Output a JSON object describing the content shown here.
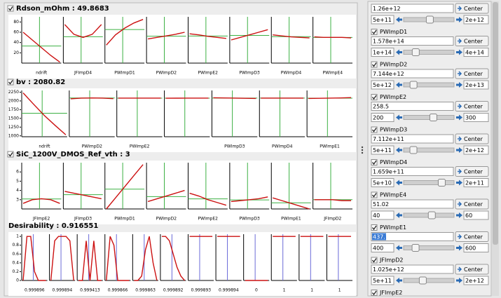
{
  "rows": [
    {
      "title": "Rdson_mOhm : 49.8683",
      "ylim": [
        0,
        90
      ],
      "yticks": [
        20,
        40,
        60,
        80
      ],
      "plots": [
        {
          "label": "ndrift",
          "values": [
            60,
            45,
            30,
            15,
            2
          ]
        },
        {
          "label": "JFImpD4",
          "values": [
            75,
            56,
            50,
            56,
            75
          ]
        },
        {
          "label": "PWImpD1",
          "values": [
            35,
            55,
            68,
            78,
            85
          ]
        },
        {
          "label": "PWImpD2",
          "values": [
            47,
            50,
            53,
            56,
            60
          ]
        },
        {
          "label": "PWImpE2",
          "values": [
            57,
            55,
            52,
            50,
            48
          ]
        },
        {
          "label": "PWImpD3",
          "values": [
            45,
            50,
            55,
            60,
            65
          ]
        },
        {
          "label": "PWImpD4",
          "values": [
            55,
            53,
            51,
            50,
            49
          ]
        },
        {
          "label": "PWImpE4",
          "values": [
            51,
            50,
            50,
            50,
            49
          ]
        }
      ]
    },
    {
      "title": "bv : 2080.82",
      "ylim": [
        975,
        2300
      ],
      "yticks": [
        1000,
        1250,
        1500,
        1750,
        2000,
        2250
      ],
      "plots": [
        {
          "label": "ndrift",
          "values": [
            2230,
            1900,
            1580,
            1300,
            1030
          ]
        },
        {
          "label": "PWImpD2",
          "values": [
            2060,
            2080,
            2085,
            2080,
            2065
          ]
        },
        {
          "label": "PWImpE2",
          "values": [
            2080,
            2080,
            2080,
            2080,
            2080
          ]
        },
        {
          "label": null,
          "values": [
            2078,
            2079,
            2080,
            2080,
            2081
          ]
        },
        {
          "label": "PWImpD3",
          "values": [
            2090,
            2085,
            2080,
            2075,
            2070
          ]
        },
        {
          "label": "PWImpD4",
          "values": [
            2080,
            2080,
            2081,
            2081,
            2081
          ]
        },
        {
          "label": "PWImpE1",
          "values": [
            2070,
            2075,
            2080,
            2085,
            2095
          ]
        }
      ]
    },
    {
      "title": "SiC_1200V_DMOS_Ref_vth : 3",
      "ylim": [
        2,
        7
      ],
      "yticks": [
        3,
        4,
        5,
        6
      ],
      "plots": [
        {
          "label": "JFImpE2",
          "values": [
            2.6,
            3.0,
            3.1,
            3.0,
            2.6
          ]
        },
        {
          "label": "JFImpD3",
          "values": [
            3.9,
            3.7,
            3.5,
            3.3,
            3.1
          ]
        },
        {
          "label": "PWImpD1",
          "values": [
            2.0,
            3.2,
            4.4,
            5.6,
            6.8
          ]
        },
        {
          "label": "PWImpD2",
          "values": [
            2.8,
            3.1,
            3.4,
            3.7,
            4.0
          ]
        },
        {
          "label": "PWImpE2",
          "values": [
            3.7,
            3.4,
            3.0,
            2.7,
            2.4
          ]
        },
        {
          "label": "PWImpD3",
          "values": [
            2.8,
            2.9,
            3.0,
            3.1,
            3.3
          ]
        },
        {
          "label": "PWImpE1",
          "values": [
            3.2,
            2.9,
            2.6,
            2.3,
            2.0
          ]
        },
        {
          "label": "JFImpD2",
          "values": [
            3.0,
            3.0,
            3.0,
            2.9,
            2.9
          ]
        }
      ]
    },
    {
      "title": "Desirability : 0.916551",
      "ylim": [
        0,
        1.05
      ],
      "yticks": [
        0,
        0.2,
        0.4,
        0.6,
        0.8,
        1
      ],
      "plots": [
        {
          "label": "0.999896",
          "values": [
            0,
            1,
            1,
            0.2,
            0,
            0,
            0
          ]
        },
        {
          "label": "0.999894",
          "values": [
            0,
            0.9,
            1,
            1,
            1,
            0.9,
            0
          ]
        },
        {
          "label": "0.999413",
          "values": [
            0,
            0,
            0.9,
            0,
            0.9,
            0,
            0
          ]
        },
        {
          "label": "0.999866",
          "values": [
            0,
            1,
            0.8,
            0,
            0,
            0,
            0
          ]
        },
        {
          "label": "0.999863",
          "values": [
            0,
            0,
            0.1,
            0.7,
            1,
            0.4,
            0
          ]
        },
        {
          "label": "0.999892",
          "values": [
            1,
            1,
            0.9,
            0.6,
            0.3,
            0.1,
            0
          ]
        },
        {
          "label": "0.999893",
          "values": [
            1,
            1,
            1,
            1,
            1,
            1,
            1
          ]
        },
        {
          "label": "0.999894",
          "values": [
            1,
            1,
            1,
            1,
            1,
            1,
            1
          ]
        },
        {
          "label": "0",
          "values": [
            0,
            0,
            0,
            0,
            0,
            0,
            0
          ]
        },
        {
          "label": "1",
          "values": [
            1,
            1,
            1,
            1,
            1,
            1,
            1
          ]
        },
        {
          "label": "1",
          "values": [
            1,
            1,
            1,
            1,
            1,
            1,
            1
          ]
        },
        {
          "label": "1",
          "values": [
            1,
            1,
            1,
            1,
            1,
            1,
            1
          ]
        }
      ]
    }
  ],
  "params": [
    {
      "name": null,
      "value": "1.26e+12",
      "min": "5e+11",
      "max": "2e+12"
    },
    {
      "name": "PWImpD1",
      "value": "1.578e+14",
      "min": "1e+14",
      "max": "4e+14"
    },
    {
      "name": "PWImpD2",
      "value": "7.144e+12",
      "min": "5e+12",
      "max": "2e+13"
    },
    {
      "name": "PWImpE2",
      "value": "258.5",
      "min": "200",
      "max": "300"
    },
    {
      "name": "PWImpD3",
      "value": "7.112e+11",
      "min": "5e+11",
      "max": "2e+12"
    },
    {
      "name": "PWImpD4",
      "value": "1.659e+11",
      "min": "5e+10",
      "max": "2e+11"
    },
    {
      "name": "PWImpE4",
      "value": "51.02",
      "min": "40",
      "max": "60"
    },
    {
      "name": "PWImpE1",
      "value": "437.7",
      "min": "400",
      "max": "600"
    },
    {
      "name": "JFImpD2",
      "value": "1.025e+12",
      "min": "5e+11",
      "max": "2e+12"
    },
    {
      "name": "JFImpE2",
      "value": null,
      "min": null,
      "max": null
    }
  ],
  "button": "Center"
}
